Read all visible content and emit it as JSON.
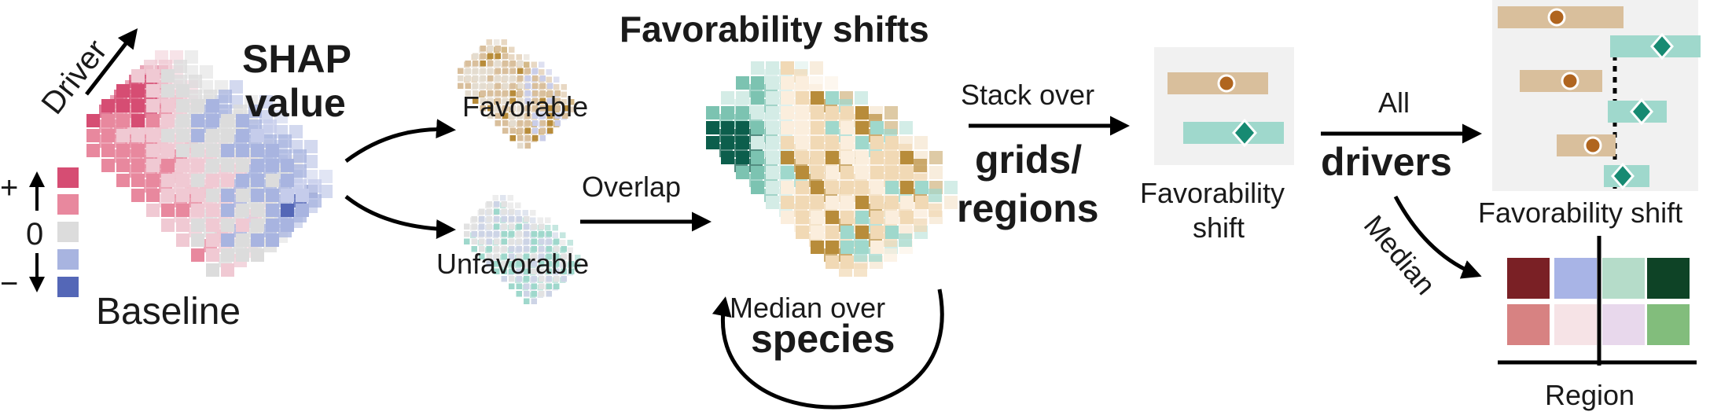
{
  "labels": {
    "driver": "Driver",
    "shap_value_line1": "SHAP",
    "shap_value_line2": "value",
    "baseline": "Baseline",
    "plus": "+",
    "zero": "0",
    "minus": "−",
    "favorable": "Favorable",
    "unfavorable": "Unfavorable",
    "overlap": "Overlap",
    "favorability_shifts": "Favorability shifts",
    "median_over": "Median over",
    "species": "species",
    "stack_over": "Stack over",
    "grids": "grids/",
    "regions": "regions",
    "favorability_shift_small_line1": "Favorability",
    "favorability_shift_small_line2": "shift",
    "all": "All",
    "drivers": "drivers",
    "favorability_shift": "Favorability shift",
    "median": "Median",
    "region": "Region"
  },
  "colors": {
    "shap_pos_strong": "#d64d73",
    "shap_pos_light": "#e8889e",
    "shap_zero": "#dcdcdc",
    "shap_neg_light": "#a8b4e0",
    "shap_neg_strong": "#5467b7",
    "favorable_tan": "#d9bf9c",
    "favorable_dark": "#b88c3a",
    "unfavorable_teal": "#9fd8cc",
    "teal_dark": "#0c5e4c",
    "marker_orange": "#b0651f",
    "marker_green": "#178a72",
    "panel_bg": "#f1f1f1",
    "region_dark_red": "#7a2025",
    "region_periwinkle": "#a8b4e6",
    "region_mint": "#b5dcc9",
    "region_dark_green": "#0e4326",
    "region_rose": "#d78282",
    "region_light_pink": "#f6e3e6",
    "region_lavender": "#e8d8ec",
    "region_green": "#82bd7c"
  }
}
